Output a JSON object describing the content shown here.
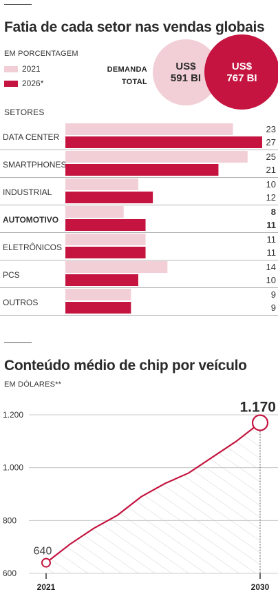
{
  "colors": {
    "y2021": "#f2cfd6",
    "y2026": "#c4143f",
    "line": "#c4143f",
    "text": "#2b2b2b"
  },
  "section1": {
    "title": "Fatia de cada setor nas vendas globais",
    "unit": "EM PORCENTAGEM",
    "legend": [
      "2021",
      "2026*"
    ],
    "demand_label_1": "DEMANDA",
    "demand_label_2": "TOTAL",
    "bubble_2021": {
      "line1": "US$",
      "line2": "591 BI"
    },
    "bubble_2026": {
      "line1": "US$",
      "line2": "767 BI"
    },
    "sectors_header": "SETORES"
  },
  "section2": {
    "title": "Conteúdo médio de chip por veículo",
    "unit": "EM DÓLARES**"
  },
  "chart_data": [
    {
      "type": "bar",
      "title": "Fatia de cada setor nas vendas globais",
      "ylabel": "SETORES",
      "xlim": [
        0,
        27
      ],
      "categories": [
        "DATA CENTER",
        "SMARTPHONES",
        "INDUSTRIAL",
        "AUTOMOTIVO",
        "ELETRÔNICOS",
        "PCS",
        "OUTROS"
      ],
      "highlight": "AUTOMOTIVO",
      "series": [
        {
          "name": "2021",
          "values": [
            23,
            25,
            10,
            8,
            11,
            14,
            9
          ]
        },
        {
          "name": "2026*",
          "values": [
            27,
            21,
            12,
            11,
            11,
            10,
            9
          ]
        }
      ]
    },
    {
      "type": "area",
      "title": "Conteúdo médio de chip por veículo",
      "ylim": [
        600,
        1200
      ],
      "yticks": [
        600,
        800,
        1000,
        1200
      ],
      "ytick_labels": [
        "600",
        "800",
        "1.000",
        "1.200"
      ],
      "xticks": [
        2021,
        2030
      ],
      "xtick_labels": [
        "2021",
        "2030"
      ],
      "x": [
        2021,
        2022,
        2023,
        2024,
        2025,
        2026,
        2027,
        2028,
        2029,
        2030
      ],
      "y": [
        640,
        710,
        770,
        820,
        890,
        940,
        980,
        1040,
        1100,
        1170
      ],
      "annotations": [
        {
          "x": 2021,
          "label": "640"
        },
        {
          "x": 2030,
          "label": "1.170"
        }
      ]
    }
  ]
}
